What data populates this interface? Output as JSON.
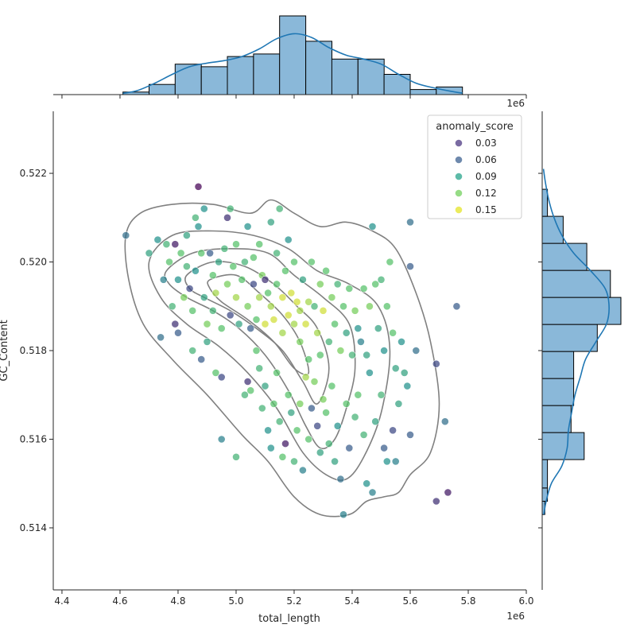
{
  "chart_data": {
    "type": "scatter",
    "xlabel": "total_length",
    "ylabel": "GC_Content",
    "x_offset_label": "1e6",
    "top_offset_label": "1e6",
    "xlim": [
      4.37,
      6.0
    ],
    "ylim": [
      0.5126,
      0.5234
    ],
    "x_ticks": [
      "4.4",
      "4.6",
      "4.8",
      "5.0",
      "5.2",
      "5.4",
      "5.6",
      "5.8",
      "6.0"
    ],
    "y_ticks": [
      "0.514",
      "0.516",
      "0.518",
      "0.520",
      "0.522"
    ],
    "legend": {
      "title": "anomaly_score",
      "placement": "top-right",
      "entries": [
        {
          "label": "0.03",
          "color": "#46327e"
        },
        {
          "label": "0.06",
          "color": "#365c8d"
        },
        {
          "label": "0.09",
          "color": "#1fa187"
        },
        {
          "label": "0.12",
          "color": "#6ece58"
        },
        {
          "label": "0.15",
          "color": "#e3e31f"
        }
      ]
    },
    "color_scale": {
      "min": 0.02,
      "max": 0.16,
      "map": "viridis"
    },
    "scatter": [
      [
        4.62,
        0.5206,
        0.07
      ],
      [
        4.7,
        0.5202,
        0.1
      ],
      [
        4.73,
        0.5205,
        0.09
      ],
      [
        4.75,
        0.5196,
        0.08
      ],
      [
        4.74,
        0.5183,
        0.07
      ],
      [
        4.76,
        0.5204,
        0.11
      ],
      [
        4.77,
        0.52,
        0.12
      ],
      [
        4.78,
        0.519,
        0.11
      ],
      [
        4.79,
        0.5186,
        0.04
      ],
      [
        4.79,
        0.5204,
        0.03
      ],
      [
        4.8,
        0.5196,
        0.09
      ],
      [
        4.8,
        0.5184,
        0.06
      ],
      [
        4.81,
        0.5202,
        0.12
      ],
      [
        4.82,
        0.5192,
        0.13
      ],
      [
        4.83,
        0.5206,
        0.1
      ],
      [
        4.83,
        0.5199,
        0.11
      ],
      [
        4.84,
        0.5194,
        0.05
      ],
      [
        4.85,
        0.5189,
        0.12
      ],
      [
        4.86,
        0.5198,
        0.09
      ],
      [
        4.86,
        0.521,
        0.11
      ],
      [
        4.87,
        0.5217,
        0.02
      ],
      [
        4.87,
        0.5208,
        0.09
      ],
      [
        4.88,
        0.5202,
        0.12
      ],
      [
        4.89,
        0.5192,
        0.1
      ],
      [
        4.89,
        0.5212,
        0.09
      ],
      [
        4.9,
        0.5186,
        0.13
      ],
      [
        4.91,
        0.5202,
        0.06
      ],
      [
        4.92,
        0.5197,
        0.12
      ],
      [
        4.92,
        0.5189,
        0.11
      ],
      [
        4.93,
        0.5193,
        0.14
      ],
      [
        4.94,
        0.52,
        0.1
      ],
      [
        4.95,
        0.5185,
        0.12
      ],
      [
        4.96,
        0.5203,
        0.11
      ],
      [
        4.97,
        0.5195,
        0.13
      ],
      [
        4.97,
        0.521,
        0.04
      ],
      [
        4.98,
        0.5188,
        0.05
      ],
      [
        4.98,
        0.5212,
        0.11
      ],
      [
        4.99,
        0.5199,
        0.12
      ],
      [
        5.0,
        0.5192,
        0.14
      ],
      [
        5.0,
        0.5204,
        0.12
      ],
      [
        5.01,
        0.5186,
        0.1
      ],
      [
        5.02,
        0.5196,
        0.12
      ],
      [
        5.03,
        0.52,
        0.11
      ],
      [
        5.04,
        0.519,
        0.13
      ],
      [
        5.04,
        0.5208,
        0.09
      ],
      [
        5.05,
        0.5185,
        0.06
      ],
      [
        5.06,
        0.5201,
        0.12
      ],
      [
        5.06,
        0.5195,
        0.05
      ],
      [
        5.07,
        0.5187,
        0.12
      ],
      [
        5.08,
        0.5192,
        0.14
      ],
      [
        5.08,
        0.5204,
        0.12
      ],
      [
        5.09,
        0.5197,
        0.13
      ],
      [
        5.1,
        0.5196,
        0.04
      ],
      [
        5.1,
        0.5186,
        0.15
      ],
      [
        5.11,
        0.5193,
        0.12
      ],
      [
        5.12,
        0.5209,
        0.1
      ],
      [
        5.12,
        0.519,
        0.14
      ],
      [
        5.13,
        0.5187,
        0.15
      ],
      [
        5.14,
        0.5195,
        0.12
      ],
      [
        5.14,
        0.5202,
        0.11
      ],
      [
        5.15,
        0.5212,
        0.11
      ],
      [
        5.16,
        0.5192,
        0.15
      ],
      [
        5.16,
        0.5184,
        0.14
      ],
      [
        5.17,
        0.5198,
        0.12
      ],
      [
        5.18,
        0.5188,
        0.15
      ],
      [
        5.18,
        0.5205,
        0.09
      ],
      [
        5.19,
        0.5193,
        0.15
      ],
      [
        5.2,
        0.5186,
        0.14
      ],
      [
        5.2,
        0.52,
        0.12
      ],
      [
        5.21,
        0.5191,
        0.15
      ],
      [
        5.22,
        0.5189,
        0.14
      ],
      [
        5.22,
        0.5182,
        0.13
      ],
      [
        5.23,
        0.5196,
        0.1
      ],
      [
        5.24,
        0.5186,
        0.15
      ],
      [
        5.25,
        0.5191,
        0.14
      ],
      [
        5.25,
        0.5178,
        0.12
      ],
      [
        5.26,
        0.52,
        0.12
      ],
      [
        5.27,
        0.519,
        0.11
      ],
      [
        5.28,
        0.5184,
        0.14
      ],
      [
        5.29,
        0.5195,
        0.13
      ],
      [
        5.29,
        0.5179,
        0.12
      ],
      [
        5.3,
        0.5189,
        0.15
      ],
      [
        5.31,
        0.5198,
        0.12
      ],
      [
        5.32,
        0.5182,
        0.11
      ],
      [
        5.33,
        0.5192,
        0.13
      ],
      [
        5.34,
        0.5186,
        0.12
      ],
      [
        5.35,
        0.5195,
        0.11
      ],
      [
        5.36,
        0.518,
        0.13
      ],
      [
        5.37,
        0.519,
        0.12
      ],
      [
        5.38,
        0.5184,
        0.1
      ],
      [
        5.39,
        0.5194,
        0.12
      ],
      [
        5.4,
        0.5179,
        0.11
      ],
      [
        5.41,
        0.5189,
        0.13
      ],
      [
        5.42,
        0.5185,
        0.09
      ],
      [
        5.43,
        0.5182,
        0.08
      ],
      [
        5.44,
        0.5194,
        0.12
      ],
      [
        5.45,
        0.5179,
        0.1
      ],
      [
        5.46,
        0.519,
        0.13
      ],
      [
        5.47,
        0.5208,
        0.09
      ],
      [
        5.48,
        0.5195,
        0.12
      ],
      [
        5.49,
        0.5185,
        0.1
      ],
      [
        5.5,
        0.5196,
        0.11
      ],
      [
        5.51,
        0.518,
        0.09
      ],
      [
        5.52,
        0.519,
        0.12
      ],
      [
        5.53,
        0.52,
        0.12
      ],
      [
        5.54,
        0.5184,
        0.12
      ],
      [
        5.55,
        0.5176,
        0.1
      ],
      [
        5.57,
        0.5182,
        0.09
      ],
      [
        5.58,
        0.5175,
        0.1
      ],
      [
        5.6,
        0.5209,
        0.07
      ],
      [
        5.6,
        0.5199,
        0.06
      ],
      [
        5.62,
        0.518,
        0.07
      ],
      [
        5.69,
        0.5177,
        0.05
      ],
      [
        5.69,
        0.5146,
        0.04
      ],
      [
        5.72,
        0.5164,
        0.07
      ],
      [
        5.73,
        0.5148,
        0.03
      ],
      [
        5.76,
        0.519,
        0.06
      ],
      [
        4.88,
        0.5178,
        0.06
      ],
      [
        4.93,
        0.5175,
        0.12
      ],
      [
        4.95,
        0.5174,
        0.05
      ],
      [
        5.04,
        0.5173,
        0.04
      ],
      [
        5.05,
        0.5171,
        0.12
      ],
      [
        5.08,
        0.5176,
        0.11
      ],
      [
        5.09,
        0.5167,
        0.11
      ],
      [
        5.1,
        0.5172,
        0.1
      ],
      [
        5.11,
        0.5162,
        0.09
      ],
      [
        5.12,
        0.5158,
        0.09
      ],
      [
        5.13,
        0.5168,
        0.12
      ],
      [
        5.14,
        0.5175,
        0.12
      ],
      [
        5.15,
        0.5164,
        0.11
      ],
      [
        5.16,
        0.5156,
        0.12
      ],
      [
        5.17,
        0.5159,
        0.03
      ],
      [
        5.18,
        0.517,
        0.12
      ],
      [
        5.19,
        0.5166,
        0.1
      ],
      [
        5.2,
        0.5155,
        0.11
      ],
      [
        5.21,
        0.5162,
        0.12
      ],
      [
        5.22,
        0.5168,
        0.13
      ],
      [
        5.23,
        0.5153,
        0.08
      ],
      [
        5.24,
        0.5174,
        0.14
      ],
      [
        5.25,
        0.516,
        0.12
      ],
      [
        5.26,
        0.5167,
        0.06
      ],
      [
        5.27,
        0.5173,
        0.13
      ],
      [
        5.28,
        0.5163,
        0.05
      ],
      [
        5.29,
        0.5157,
        0.1
      ],
      [
        5.3,
        0.5169,
        0.13
      ],
      [
        5.31,
        0.5166,
        0.12
      ],
      [
        5.32,
        0.5159,
        0.11
      ],
      [
        5.33,
        0.5172,
        0.12
      ],
      [
        5.34,
        0.5155,
        0.1
      ],
      [
        5.35,
        0.5163,
        0.09
      ],
      [
        5.36,
        0.5151,
        0.07
      ],
      [
        5.37,
        0.5143,
        0.08
      ],
      [
        5.38,
        0.5168,
        0.12
      ],
      [
        5.39,
        0.5158,
        0.06
      ],
      [
        5.41,
        0.5165,
        0.11
      ],
      [
        5.42,
        0.517,
        0.12
      ],
      [
        5.44,
        0.5161,
        0.11
      ],
      [
        5.45,
        0.515,
        0.09
      ],
      [
        5.46,
        0.5175,
        0.09
      ],
      [
        5.47,
        0.5148,
        0.08
      ],
      [
        5.48,
        0.5164,
        0.1
      ],
      [
        5.5,
        0.517,
        0.11
      ],
      [
        5.51,
        0.5158,
        0.06
      ],
      [
        5.52,
        0.5155,
        0.09
      ],
      [
        5.54,
        0.5162,
        0.05
      ],
      [
        5.55,
        0.5155,
        0.08
      ],
      [
        5.56,
        0.5168,
        0.1
      ],
      [
        5.59,
        0.5172,
        0.09
      ],
      [
        5.6,
        0.5161,
        0.06
      ],
      [
        5.03,
        0.517,
        0.11
      ],
      [
        5.0,
        0.5156,
        0.11
      ],
      [
        4.95,
        0.516,
        0.08
      ],
      [
        5.07,
        0.518,
        0.12
      ],
      [
        4.9,
        0.5182,
        0.1
      ],
      [
        4.85,
        0.518,
        0.11
      ]
    ],
    "top_histogram": {
      "bin_edges": [
        4.61,
        4.7,
        4.79,
        4.88,
        4.97,
        5.06,
        5.15,
        5.24,
        5.33,
        5.42,
        5.51,
        5.6,
        5.69,
        5.78
      ],
      "counts": [
        1,
        4,
        12,
        11,
        15,
        16,
        31,
        21,
        14,
        14,
        8,
        2,
        3
      ],
      "kde": [
        [
          4.61,
          0.5
        ],
        [
          4.66,
          1.6
        ],
        [
          4.72,
          4.5
        ],
        [
          4.78,
          8.0
        ],
        [
          4.84,
          11.0
        ],
        [
          4.9,
          12.4
        ],
        [
          4.96,
          13.4
        ],
        [
          5.02,
          15.0
        ],
        [
          5.08,
          18.0
        ],
        [
          5.14,
          22.0
        ],
        [
          5.2,
          24.0
        ],
        [
          5.26,
          22.5
        ],
        [
          5.32,
          18.5
        ],
        [
          5.38,
          15.5
        ],
        [
          5.44,
          14.0
        ],
        [
          5.5,
          12.0
        ],
        [
          5.56,
          8.0
        ],
        [
          5.62,
          4.5
        ],
        [
          5.68,
          2.7
        ],
        [
          5.74,
          1.3
        ],
        [
          5.78,
          0.6
        ]
      ]
    },
    "right_histogram": {
      "bin_edges": [
        0.5143,
        0.5146,
        0.5149,
        0.51554,
        0.51615,
        0.51676,
        0.51737,
        0.51798,
        0.51859,
        0.5192,
        0.51981,
        0.52042,
        0.52103,
        0.52164
      ],
      "counts": [
        1,
        2,
        2,
        16,
        11,
        12,
        12,
        21,
        30,
        26,
        17,
        8,
        2
      ],
      "kde": [
        [
          0.5143,
          0.6
        ],
        [
          0.5146,
          1.5
        ],
        [
          0.515,
          3.5
        ],
        [
          0.5154,
          7.5
        ],
        [
          0.5158,
          9.5
        ],
        [
          0.5162,
          10.0
        ],
        [
          0.5166,
          11.2
        ],
        [
          0.517,
          12.5
        ],
        [
          0.5174,
          14.5
        ],
        [
          0.5178,
          16.5
        ],
        [
          0.5182,
          20.5
        ],
        [
          0.5186,
          24.5
        ],
        [
          0.519,
          25.5
        ],
        [
          0.5194,
          24.0
        ],
        [
          0.5198,
          18.5
        ],
        [
          0.5202,
          12.0
        ],
        [
          0.5206,
          7.5
        ],
        [
          0.521,
          4.5
        ],
        [
          0.5214,
          2.5
        ],
        [
          0.5218,
          1.2
        ],
        [
          0.5221,
          0.5
        ]
      ]
    },
    "kde_contours": [
      [
        [
          4.62,
          0.5206
        ],
        [
          4.67,
          0.5211
        ],
        [
          4.78,
          0.5213
        ],
        [
          4.92,
          0.5213
        ],
        [
          5.05,
          0.5211
        ],
        [
          5.12,
          0.5214
        ],
        [
          5.2,
          0.5211
        ],
        [
          5.29,
          0.5208
        ],
        [
          5.38,
          0.5209
        ],
        [
          5.47,
          0.5207
        ],
        [
          5.55,
          0.5203
        ],
        [
          5.62,
          0.5193
        ],
        [
          5.67,
          0.5182
        ],
        [
          5.7,
          0.5168
        ],
        [
          5.67,
          0.5157
        ],
        [
          5.6,
          0.5152
        ],
        [
          5.56,
          0.5148
        ],
        [
          5.51,
          0.5147
        ],
        [
          5.45,
          0.5146
        ],
        [
          5.39,
          0.5143
        ],
        [
          5.29,
          0.5143
        ],
        [
          5.2,
          0.5147
        ],
        [
          5.11,
          0.5155
        ],
        [
          5.02,
          0.5161
        ],
        [
          4.9,
          0.517
        ],
        [
          4.78,
          0.5178
        ],
        [
          4.68,
          0.5186
        ],
        [
          4.63,
          0.5196
        ],
        [
          4.62,
          0.5206
        ]
      ],
      [
        [
          4.7,
          0.52
        ],
        [
          4.78,
          0.5206
        ],
        [
          4.92,
          0.5207
        ],
        [
          5.06,
          0.5206
        ],
        [
          5.18,
          0.5203
        ],
        [
          5.28,
          0.5198
        ],
        [
          5.39,
          0.5195
        ],
        [
          5.49,
          0.519
        ],
        [
          5.53,
          0.518
        ],
        [
          5.5,
          0.5166
        ],
        [
          5.44,
          0.5156
        ],
        [
          5.38,
          0.5151
        ],
        [
          5.31,
          0.5152
        ],
        [
          5.23,
          0.5157
        ],
        [
          5.14,
          0.5167
        ],
        [
          5.04,
          0.5175
        ],
        [
          4.94,
          0.5181
        ],
        [
          4.83,
          0.5186
        ],
        [
          4.74,
          0.5192
        ],
        [
          4.7,
          0.52
        ]
      ],
      [
        [
          4.76,
          0.5198
        ],
        [
          4.85,
          0.5202
        ],
        [
          4.98,
          0.5203
        ],
        [
          5.11,
          0.5202
        ],
        [
          5.2,
          0.5197
        ],
        [
          5.3,
          0.5192
        ],
        [
          5.39,
          0.5186
        ],
        [
          5.41,
          0.5176
        ],
        [
          5.38,
          0.5167
        ],
        [
          5.34,
          0.516
        ],
        [
          5.29,
          0.5158
        ],
        [
          5.24,
          0.5163
        ],
        [
          5.18,
          0.5171
        ],
        [
          5.1,
          0.5179
        ],
        [
          5.01,
          0.5185
        ],
        [
          4.92,
          0.5189
        ],
        [
          4.83,
          0.5192
        ],
        [
          4.77,
          0.5195
        ],
        [
          4.76,
          0.5198
        ]
      ],
      [
        [
          4.83,
          0.5197
        ],
        [
          4.92,
          0.52
        ],
        [
          5.03,
          0.5199
        ],
        [
          5.13,
          0.5195
        ],
        [
          5.21,
          0.519
        ],
        [
          5.28,
          0.5185
        ],
        [
          5.32,
          0.5176
        ],
        [
          5.28,
          0.5168
        ],
        [
          5.23,
          0.5173
        ],
        [
          5.16,
          0.518
        ],
        [
          5.07,
          0.5185
        ],
        [
          4.98,
          0.5189
        ],
        [
          4.89,
          0.5192
        ],
        [
          4.84,
          0.5194
        ],
        [
          4.83,
          0.5197
        ]
      ],
      [
        [
          4.91,
          0.5196
        ],
        [
          5.0,
          0.5197
        ],
        [
          5.08,
          0.5193
        ],
        [
          5.16,
          0.5188
        ],
        [
          5.22,
          0.5182
        ],
        [
          5.25,
          0.5175
        ],
        [
          5.2,
          0.5176
        ],
        [
          5.13,
          0.5182
        ],
        [
          5.04,
          0.5187
        ],
        [
          4.95,
          0.5191
        ],
        [
          4.91,
          0.5194
        ],
        [
          4.91,
          0.5196
        ]
      ]
    ]
  }
}
